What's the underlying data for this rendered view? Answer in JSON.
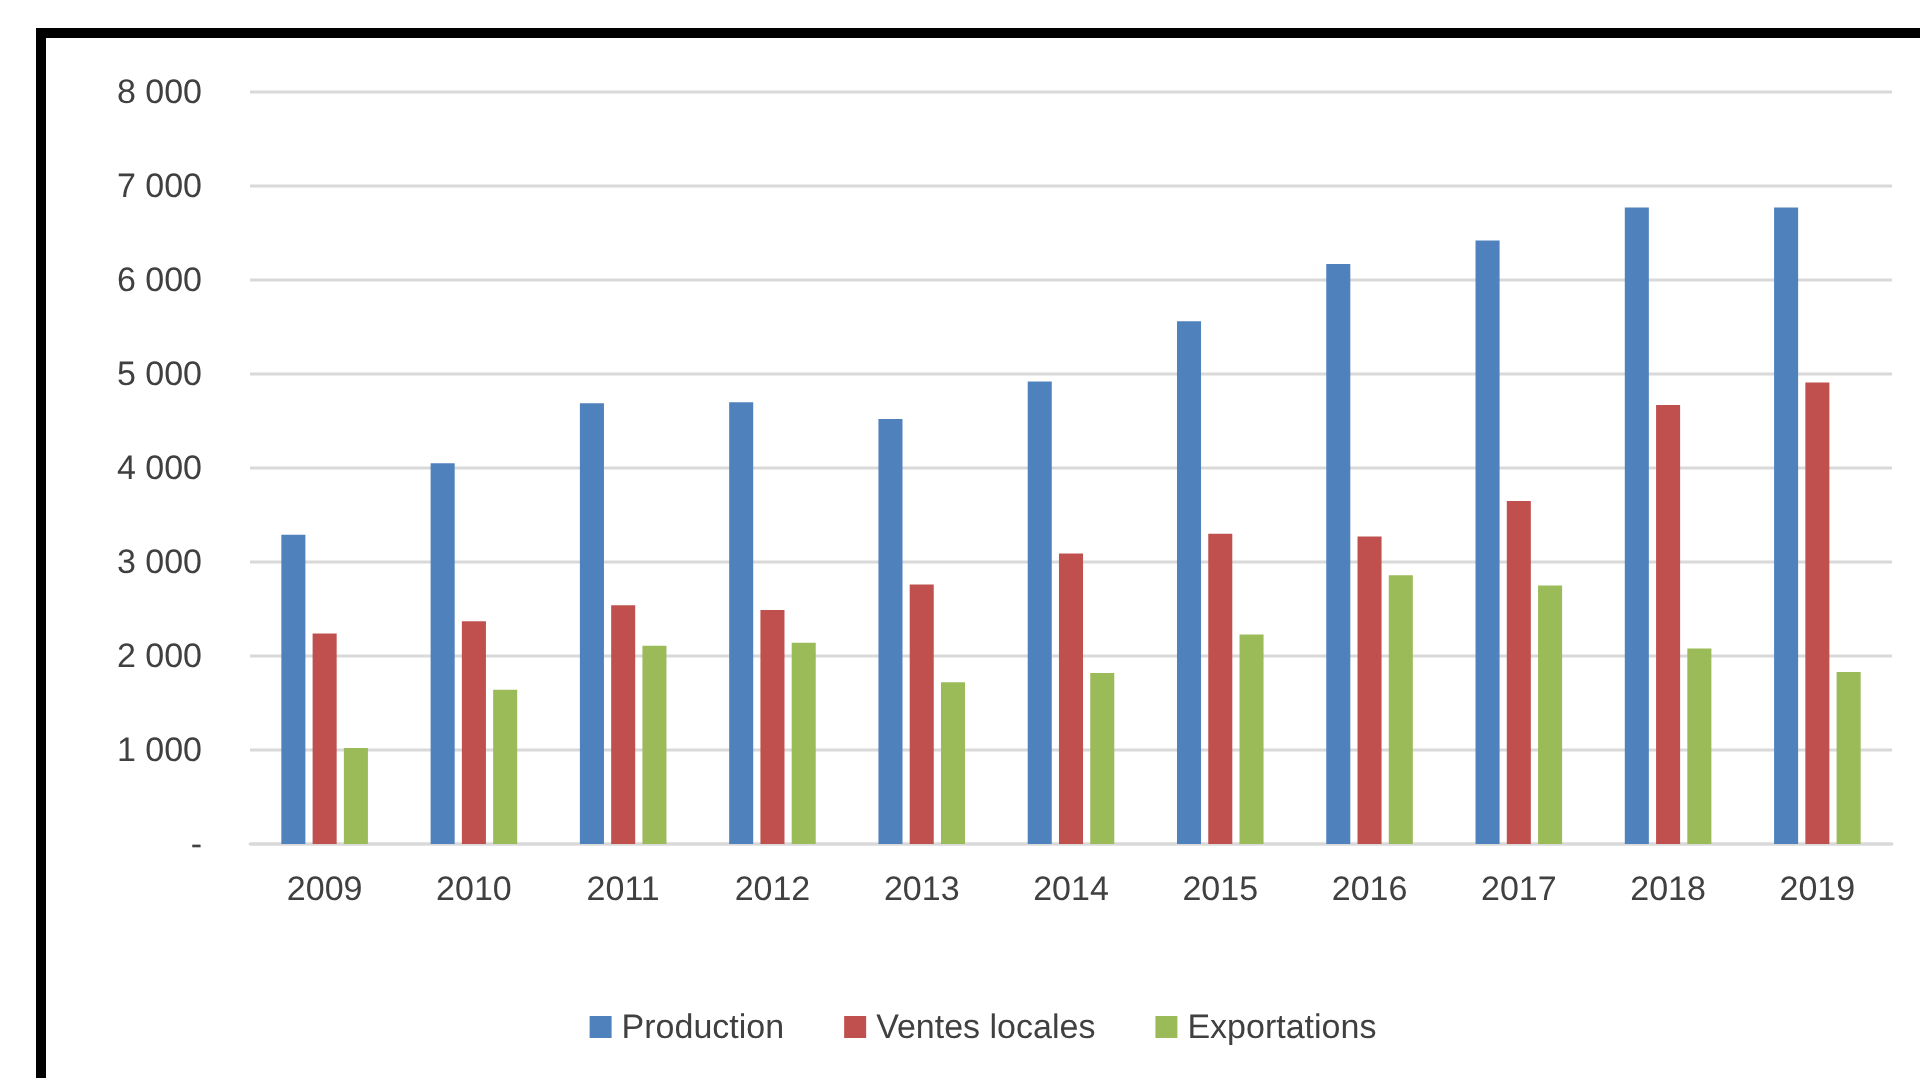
{
  "chart_data": {
    "type": "bar",
    "categories": [
      "2009",
      "2010",
      "2011",
      "2012",
      "2013",
      "2014",
      "2015",
      "2016",
      "2017",
      "2018",
      "2019"
    ],
    "series": [
      {
        "name": "Production",
        "color": "#4f81bd",
        "values": [
          3290,
          4050,
          4690,
          4700,
          4520,
          4920,
          5560,
          6170,
          6420,
          6770,
          6770
        ]
      },
      {
        "name": "Ventes locales",
        "color": "#c0504d",
        "values": [
          2240,
          2370,
          2540,
          2490,
          2760,
          3090,
          3300,
          3270,
          3650,
          4670,
          4910
        ]
      },
      {
        "name": "Exportations",
        "color": "#9bbb59",
        "values": [
          1020,
          1640,
          2110,
          2140,
          1720,
          1820,
          2230,
          2860,
          2750,
          2080,
          1830
        ]
      }
    ],
    "ylim": [
      0,
      8000
    ],
    "yticks": [
      {
        "value": 0,
        "label": "-"
      },
      {
        "value": 1000,
        "label": "1 000"
      },
      {
        "value": 2000,
        "label": "2 000"
      },
      {
        "value": 3000,
        "label": "3 000"
      },
      {
        "value": 4000,
        "label": "4 000"
      },
      {
        "value": 5000,
        "label": "5 000"
      },
      {
        "value": 6000,
        "label": "6 000"
      },
      {
        "value": 7000,
        "label": "7 000"
      },
      {
        "value": 8000,
        "label": "8 000"
      }
    ],
    "grid": "y",
    "legend": "bottom"
  }
}
